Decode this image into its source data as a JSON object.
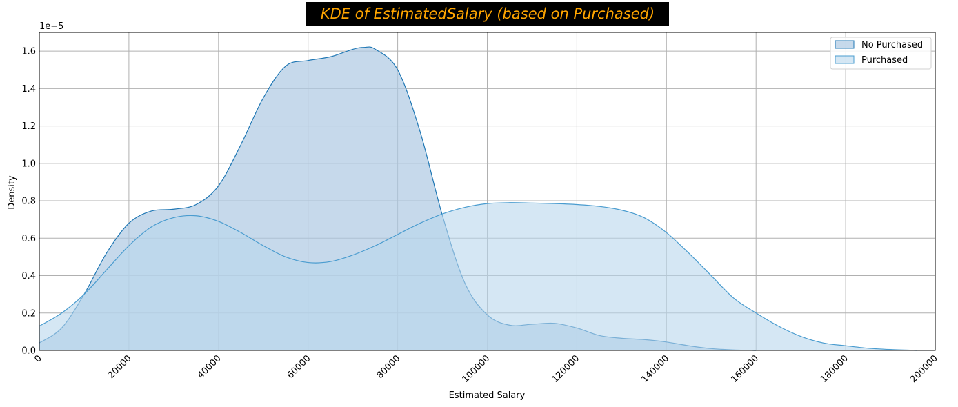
{
  "chart_data": {
    "type": "area",
    "title": "KDE of EstimatedSalary (based on Purchased)",
    "xlabel": "Estimated Salary",
    "ylabel": "Density",
    "y_offset_label": "1e−5",
    "xlim": [
      0,
      200000
    ],
    "ylim": [
      0,
      1.7
    ],
    "y_scale_note": "values in units of 1e-5",
    "x_ticks": [
      "0",
      "20000",
      "40000",
      "60000",
      "80000",
      "100000",
      "120000",
      "140000",
      "160000",
      "180000",
      "200000"
    ],
    "y_ticks": [
      "0.0",
      "0.2",
      "0.4",
      "0.6",
      "0.8",
      "1.0",
      "1.2",
      "1.4",
      "1.6"
    ],
    "grid": true,
    "legend_position": "top-right",
    "colors": {
      "title": "#FFA500",
      "title_bg": "#000000",
      "no_purchased_line": "#1f77b4",
      "no_purchased_fill": "#aec9e3",
      "purchased_line": "#4a9ccf",
      "purchased_fill": "#b9d7ec"
    },
    "series": [
      {
        "name": "No Purchased",
        "x": [
          0,
          5000,
          10000,
          15000,
          20000,
          25000,
          30000,
          35000,
          40000,
          45000,
          50000,
          55000,
          60000,
          65000,
          70000,
          72500,
          75000,
          80000,
          85000,
          90000,
          95000,
          100000,
          105000,
          110000,
          115000,
          120000,
          125000,
          130000,
          135000,
          140000,
          145000,
          150000,
          155000,
          160000
        ],
        "values": [
          0.04,
          0.12,
          0.3,
          0.52,
          0.68,
          0.745,
          0.755,
          0.78,
          0.88,
          1.1,
          1.35,
          1.52,
          1.55,
          1.57,
          1.61,
          1.62,
          1.61,
          1.5,
          1.17,
          0.72,
          0.36,
          0.19,
          0.135,
          0.14,
          0.145,
          0.12,
          0.08,
          0.065,
          0.058,
          0.045,
          0.025,
          0.01,
          0.003,
          0.0
        ]
      },
      {
        "name": "Purchased",
        "x": [
          0,
          5000,
          10000,
          15000,
          20000,
          25000,
          30000,
          35000,
          40000,
          45000,
          50000,
          55000,
          60000,
          65000,
          70000,
          75000,
          80000,
          85000,
          90000,
          95000,
          100000,
          105000,
          110000,
          115000,
          120000,
          125000,
          130000,
          135000,
          140000,
          145000,
          150000,
          155000,
          160000,
          165000,
          170000,
          175000,
          180000,
          185000,
          190000,
          196000
        ],
        "values": [
          0.13,
          0.2,
          0.3,
          0.43,
          0.56,
          0.66,
          0.71,
          0.72,
          0.69,
          0.63,
          0.56,
          0.5,
          0.47,
          0.475,
          0.51,
          0.56,
          0.62,
          0.68,
          0.73,
          0.765,
          0.785,
          0.79,
          0.788,
          0.785,
          0.78,
          0.77,
          0.75,
          0.71,
          0.63,
          0.52,
          0.4,
          0.28,
          0.2,
          0.13,
          0.075,
          0.04,
          0.025,
          0.012,
          0.005,
          0.0
        ]
      }
    ]
  }
}
